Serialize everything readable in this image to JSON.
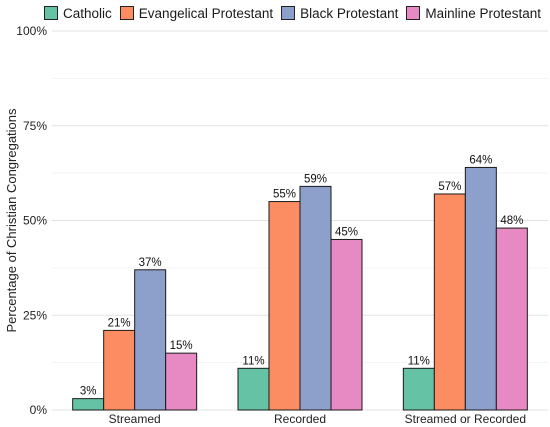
{
  "chart_data": {
    "type": "bar",
    "title": "",
    "xlabel": "",
    "ylabel": "Percentage of Christian Congregations",
    "ylim": [
      0,
      100
    ],
    "yticks": [
      "0%",
      "25%",
      "50%",
      "75%",
      "100%"
    ],
    "ytick_values": [
      0,
      25,
      50,
      75,
      100
    ],
    "categories": [
      "Streamed",
      "Recorded",
      "Streamed or Recorded"
    ],
    "series": [
      {
        "name": "Catholic",
        "color": "#66c2a5",
        "values": [
          3,
          11,
          11
        ],
        "labels": [
          "3%",
          "11%",
          "11%"
        ]
      },
      {
        "name": "Evangelical Protestant",
        "color": "#fc8d62",
        "values": [
          21,
          55,
          57
        ],
        "labels": [
          "21%",
          "55%",
          "57%"
        ]
      },
      {
        "name": "Black Protestant",
        "color": "#8da0cb",
        "values": [
          37,
          59,
          64
        ],
        "labels": [
          "37%",
          "59%",
          "64%"
        ]
      },
      {
        "name": "Mainline Protestant",
        "color": "#e78ac3",
        "values": [
          15,
          45,
          48
        ],
        "labels": [
          "15%",
          "45%",
          "48%"
        ]
      }
    ],
    "grid": true,
    "legend": "top"
  }
}
